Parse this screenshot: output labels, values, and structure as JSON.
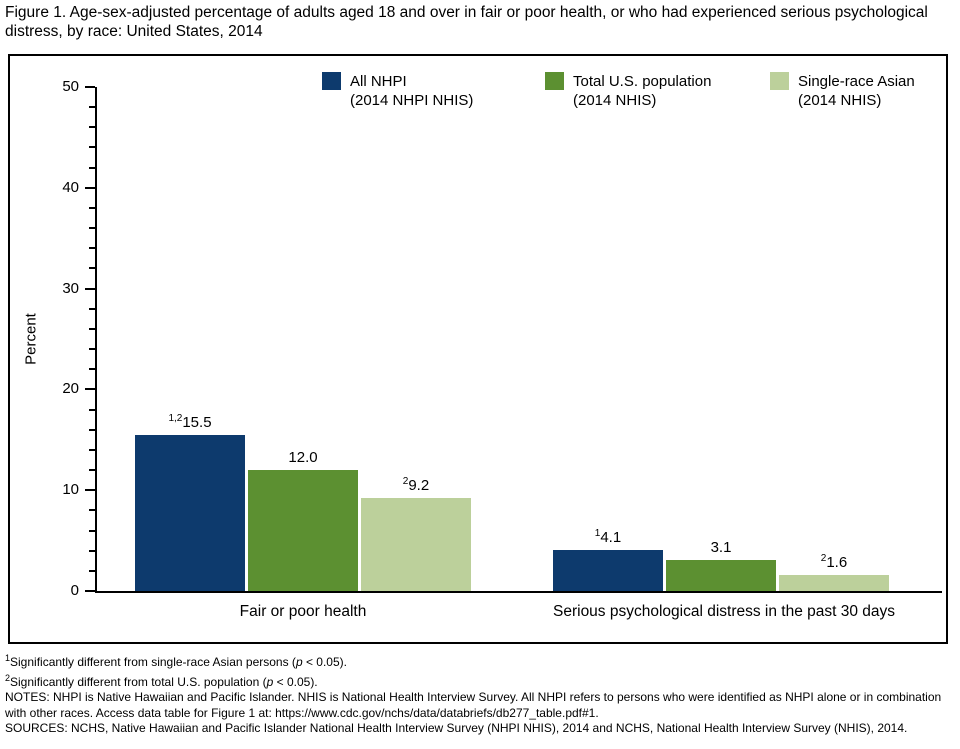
{
  "figure": {
    "title": "Figure 1. Age-sex-adjusted percentage of adults aged 18 and over in fair or poor health, or who had experienced serious psychological distress, by race: United States, 2014"
  },
  "chart_data": {
    "type": "bar",
    "title": "Age-sex-adjusted percentage of adults aged 18 and over in fair or poor health, or who had experienced serious psychological distress, by race: United States, 2014",
    "xlabel": "",
    "ylabel": "Percent",
    "ylim": [
      0,
      50
    ],
    "ytick_step": 10,
    "minor_tick_step": 2,
    "grid": false,
    "legend_position": "top",
    "categories": [
      "Fair or poor health",
      "Serious psychological distress in the past 30 days"
    ],
    "series": [
      {
        "name": "All NHPI (2014 NHPI NHIS)",
        "legend_line1": "All NHPI",
        "legend_line2": "(2014 NHPI NHIS)",
        "color": "#0d3a6d",
        "values": [
          15.5,
          4.1
        ],
        "value_labels": [
          "15.5",
          "4.1"
        ],
        "value_sups": [
          "1,2",
          "1"
        ]
      },
      {
        "name": "Total U.S. population (2014 NHIS)",
        "legend_line1": "Total U.S. population",
        "legend_line2": "(2014 NHIS)",
        "color": "#5c9031",
        "values": [
          12.0,
          3.1
        ],
        "value_labels": [
          "12.0",
          "3.1"
        ],
        "value_sups": [
          "",
          ""
        ]
      },
      {
        "name": "Single-race Asian (2014 NHIS)",
        "legend_line1": "Single-race Asian",
        "legend_line2": "(2014 NHIS)",
        "color": "#bcd09b",
        "values": [
          9.2,
          1.6
        ],
        "value_labels": [
          "9.2",
          "1.6"
        ],
        "value_sups": [
          "2",
          "2"
        ]
      }
    ]
  },
  "footnotes": {
    "fn1": {
      "sup": "1",
      "before_p": "Significantly different from single-race Asian persons (",
      "p": "p",
      "after_p": " < 0.05)."
    },
    "fn2": {
      "sup": "2",
      "before_p": "Significantly different from total U.S. population (",
      "p": "p",
      "after_p": " < 0.05)."
    },
    "notes": "NOTES: NHPI is Native Hawaiian and Pacific Islander. NHIS is National Health Interview Survey. All NHPI refers to persons who were identified as NHPI alone or in combination with other races. Access data table for Figure 1 at: https://www.cdc.gov/nchs/data/databriefs/db277_table.pdf#1.",
    "sources": "SOURCES: NCHS, Native Hawaiian and Pacific Islander National Health Interview Survey (NHPI NHIS), 2014 and NCHS, National Health Interview Survey (NHIS), 2014."
  }
}
